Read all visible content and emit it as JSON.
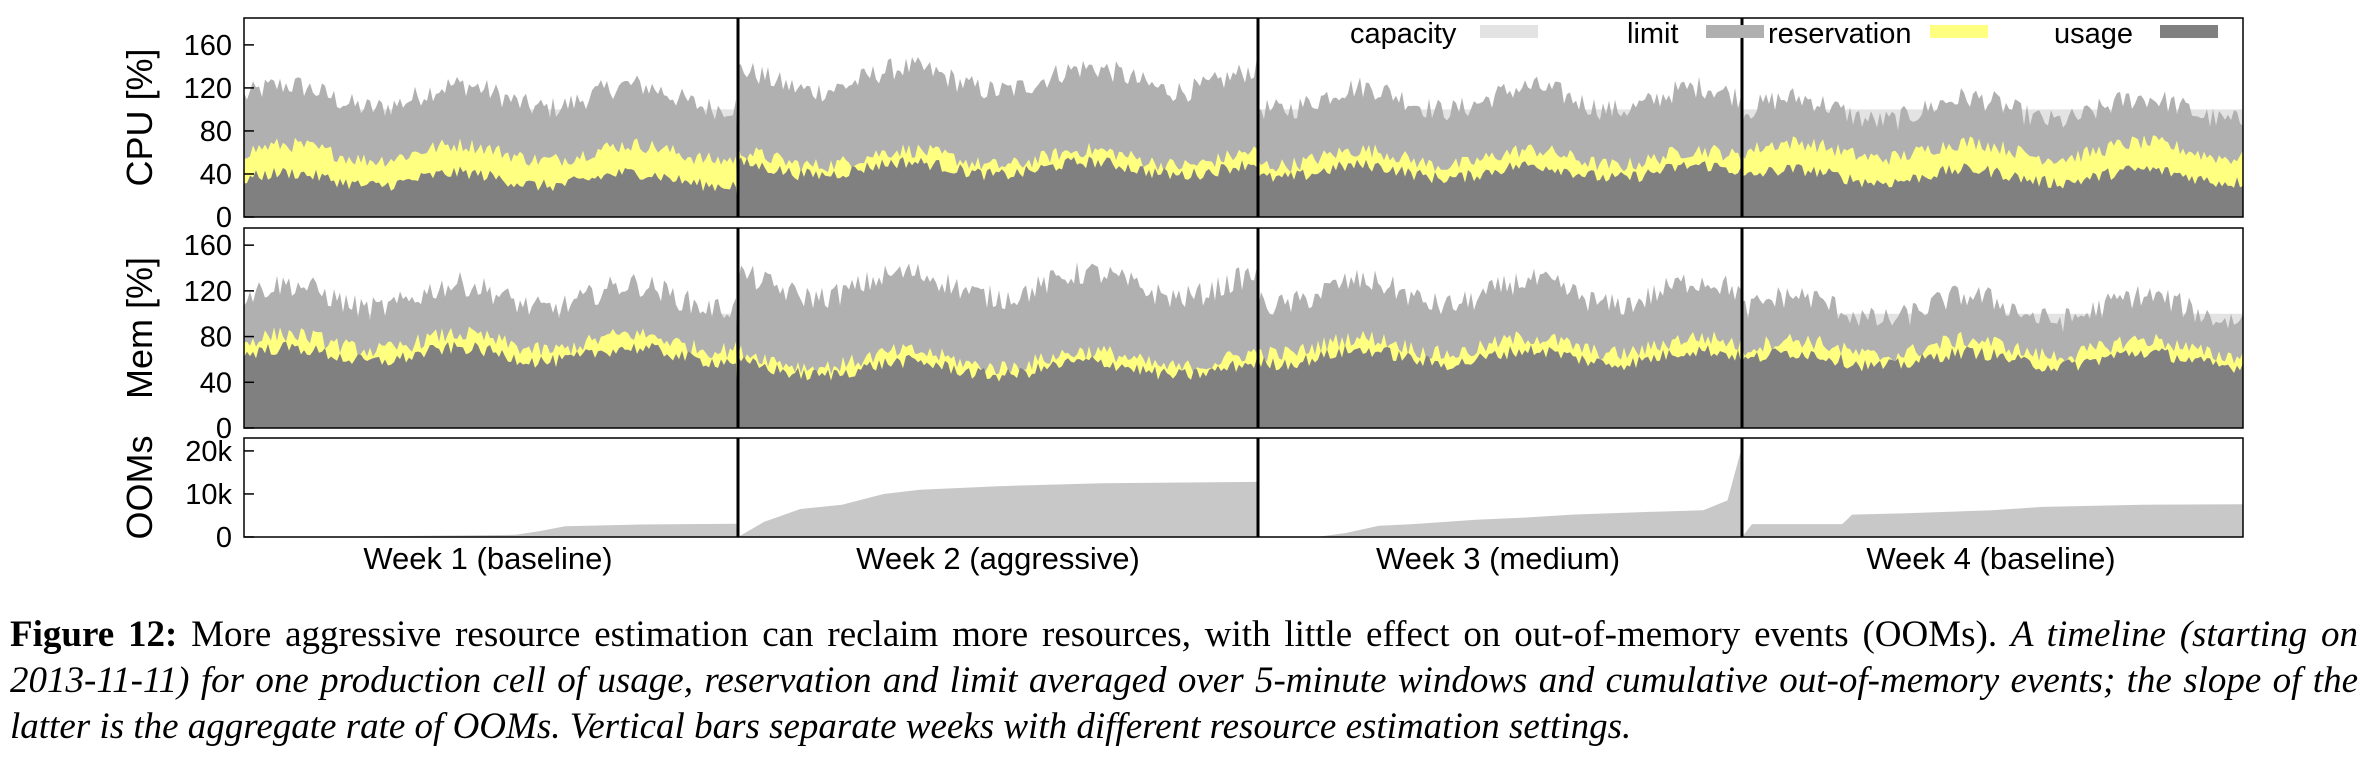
{
  "chart_data": [
    {
      "type": "area",
      "ylabel": "CPU [%]",
      "yticks": [
        "0",
        "40",
        "80",
        "120",
        "160"
      ],
      "ylim": [
        0,
        185
      ],
      "x_sections": [
        "Week 1 (baseline)",
        "Week 2 (aggressive)",
        "Week 3 (medium)",
        "Week 4 (baseline)"
      ],
      "series": [
        {
          "name": "capacity",
          "color": "#e3e3e3",
          "week_values": [
            100,
            100,
            100,
            100
          ]
        },
        {
          "name": "limit",
          "color": "#b0b0b0",
          "week_values": [
            112,
            128,
            110,
            100
          ]
        },
        {
          "name": "reservation",
          "color": "#ffff80",
          "week_values": [
            60,
            55,
            55,
            62
          ]
        },
        {
          "name": "usage",
          "color": "#808080",
          "week_values": [
            35,
            45,
            42,
            38
          ]
        }
      ],
      "legend_position": "top-right",
      "grid": false
    },
    {
      "type": "area",
      "ylabel": "Mem [%]",
      "yticks": [
        "0",
        "40",
        "80",
        "120",
        "160"
      ],
      "ylim": [
        0,
        175
      ],
      "x_sections": [
        "Week 1 (baseline)",
        "Week 2 (aggressive)",
        "Week 3 (medium)",
        "Week 4 (baseline)"
      ],
      "series": [
        {
          "name": "capacity",
          "color": "#e3e3e3",
          "week_values": [
            100,
            100,
            100,
            100
          ]
        },
        {
          "name": "limit",
          "color": "#b0b0b0",
          "week_values": [
            115,
            125,
            118,
            105
          ]
        },
        {
          "name": "reservation",
          "color": "#ffff80",
          "week_values": [
            75,
            60,
            72,
            70
          ]
        },
        {
          "name": "usage",
          "color": "#808080",
          "week_values": [
            64,
            52,
            62,
            60
          ]
        }
      ],
      "grid": false
    },
    {
      "type": "area",
      "ylabel": "OOMs",
      "yticks": [
        "0",
        "10k",
        "20k"
      ],
      "ylim": [
        0,
        23000
      ],
      "x_sections": [
        "Week 1 (baseline)",
        "Week 2 (aggressive)",
        "Week 3 (medium)",
        "Week 4 (baseline)"
      ],
      "series": [
        {
          "name": "cumulative OOMs",
          "color": "#c8c8c8",
          "weeks": [
            {
              "x": [
                0,
                0.2,
                0.55,
                0.6,
                0.65,
                0.8,
                0.9,
                1.0
              ],
              "y": [
                0,
                100,
                500,
                1400,
                2500,
                2900,
                3000,
                3100
              ]
            },
            {
              "x": [
                0,
                0.05,
                0.12,
                0.2,
                0.28,
                0.35,
                0.5,
                0.7,
                1.0
              ],
              "y": [
                0,
                3500,
                6500,
                7500,
                10000,
                11000,
                11800,
                12500,
                12800
              ]
            },
            {
              "x": [
                0,
                0.12,
                0.18,
                0.25,
                0.32,
                0.45,
                0.55,
                0.65,
                0.8,
                0.92,
                0.97,
                1.0
              ],
              "y": [
                0,
                0,
                900,
                2600,
                3000,
                4000,
                4500,
                5200,
                5800,
                6200,
                8500,
                21000
              ]
            },
            {
              "x": [
                0,
                0.02,
                0.2,
                0.22,
                0.35,
                0.5,
                0.6,
                0.8,
                1.0
              ],
              "y": [
                0,
                3000,
                3000,
                5200,
                5600,
                6200,
                7000,
                7500,
                7600
              ]
            }
          ]
        }
      ],
      "grid": false
    }
  ],
  "legend": {
    "capacity": "capacity",
    "limit": "limit",
    "reservation": "reservation",
    "usage": "usage"
  },
  "x_labels": [
    "Week 1 (baseline)",
    "Week 2 (aggressive)",
    "Week 3 (medium)",
    "Week 4 (baseline)"
  ],
  "caption": {
    "label": "Figure 12:",
    "text": " More aggressive resource estimation can reclaim more resources, with little effect on out-of-memory events (OOMs). ",
    "italic": "A timeline (starting on 2013-11-11) for one production cell of usage, reservation and limit averaged over 5-minute windows and cumulative out-of-memory events; the slope of the latter is the aggregate rate of OOMs. Vertical bars separate weeks with different resource estimation settings."
  }
}
